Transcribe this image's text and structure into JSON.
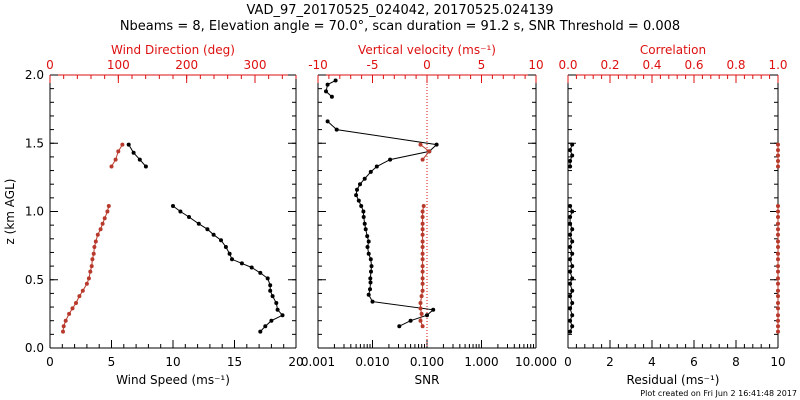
{
  "header": {
    "title_line1": "VAD_97_20170525_024042, 20170525.024139",
    "title_line2": "Nbeams = 8, Elevation angle = 70.0°, scan duration = 91.2 s, SNR Threshold = 0.008"
  },
  "footer": {
    "plot_created": "Plot created on Fri Jun  2 16:41:48 2017"
  },
  "colors": {
    "black": "#000000",
    "red": "#b83a2c",
    "axis_red": "#dd1111"
  },
  "chart_data": [
    {
      "type": "line",
      "panel": "left",
      "ylabel": "z (km AGL)",
      "ylim": [
        0,
        2.0
      ],
      "y_ticks": [
        "0.0",
        "0.5",
        "1.0",
        "1.5",
        "2.0"
      ],
      "xlabel_bottom": "Wind Speed (ms⁻¹)",
      "xlim_bottom": [
        0,
        20
      ],
      "x_ticks_bottom": [
        "0",
        "5",
        "10",
        "15",
        "20"
      ],
      "xlabel_top": "Wind Direction (deg)",
      "xlim_top": [
        0,
        360
      ],
      "x_ticks_top": [
        "0",
        "100",
        "200",
        "300"
      ],
      "series": [
        {
          "axis": "bottom",
          "color": "black",
          "segments": [
            [
              [
                6.4,
                1.49
              ],
              [
                6.8,
                1.43
              ],
              [
                7.3,
                1.38
              ],
              [
                7.8,
                1.33
              ]
            ],
            [
              [
                10.0,
                1.04
              ],
              [
                10.6,
                1.0
              ],
              [
                11.3,
                0.96
              ],
              [
                12.1,
                0.91
              ],
              [
                12.8,
                0.87
              ],
              [
                13.3,
                0.83
              ],
              [
                13.9,
                0.79
              ],
              [
                14.3,
                0.74
              ],
              [
                14.6,
                0.69
              ],
              [
                14.8,
                0.65
              ],
              [
                15.6,
                0.62
              ],
              [
                16.4,
                0.59
              ],
              [
                17.1,
                0.55
              ],
              [
                17.7,
                0.51
              ],
              [
                17.9,
                0.46
              ],
              [
                17.9,
                0.42
              ],
              [
                18.1,
                0.38
              ],
              [
                18.4,
                0.33
              ],
              [
                18.5,
                0.28
              ],
              [
                18.9,
                0.24
              ],
              [
                18.0,
                0.2
              ],
              [
                17.5,
                0.16
              ],
              [
                17.1,
                0.12
              ]
            ]
          ]
        },
        {
          "axis": "top",
          "color": "red",
          "segments": [
            [
              [
                106,
                1.49
              ],
              [
                100,
                1.44
              ],
              [
                96,
                1.38
              ],
              [
                90,
                1.33
              ]
            ],
            [
              [
                86,
                1.04
              ],
              [
                84,
                1.0
              ],
              [
                80,
                0.95
              ],
              [
                77,
                0.91
              ],
              [
                74,
                0.87
              ],
              [
                70,
                0.83
              ],
              [
                67,
                0.78
              ],
              [
                65,
                0.74
              ],
              [
                64,
                0.69
              ],
              [
                62,
                0.65
              ],
              [
                61,
                0.6
              ],
              [
                59,
                0.56
              ],
              [
                57,
                0.51
              ],
              [
                54,
                0.47
              ],
              [
                48,
                0.42
              ],
              [
                43,
                0.38
              ],
              [
                38,
                0.33
              ],
              [
                33,
                0.29
              ],
              [
                28,
                0.25
              ],
              [
                23,
                0.2
              ],
              [
                20,
                0.16
              ],
              [
                19,
                0.12
              ]
            ]
          ]
        }
      ]
    },
    {
      "type": "line",
      "panel": "middle",
      "ylim": [
        0,
        2.0
      ],
      "xlabel_bottom": "SNR",
      "xscale_bottom": "log",
      "xlim_bottom": [
        0.001,
        10
      ],
      "x_ticks_bottom": [
        "0.001",
        "0.010",
        "0.100",
        "1.000",
        "10.000"
      ],
      "xlabel_top": "Vertical velocity (ms⁻¹)",
      "xlim_top": [
        -10,
        10
      ],
      "x_ticks_top": [
        "-10",
        "-5",
        "0",
        "5",
        "10"
      ],
      "reference_line": {
        "axis": "top",
        "value": 0,
        "style": "dotted",
        "color": "red"
      },
      "series": [
        {
          "axis": "bottom",
          "color": "black",
          "segments": [
            [
              [
                0.0021,
                1.96
              ],
              [
                0.0015,
                1.93
              ],
              [
                0.0014,
                1.88
              ],
              [
                0.0018,
                1.84
              ]
            ],
            [
              [
                0.0015,
                1.66
              ],
              [
                0.0022,
                1.6
              ],
              [
                0.15,
                1.49
              ],
              [
                0.11,
                1.44
              ],
              [
                0.021,
                1.38
              ],
              [
                0.012,
                1.33
              ],
              [
                0.0093,
                1.29
              ],
              [
                0.0072,
                1.24
              ],
              [
                0.0059,
                1.2
              ],
              [
                0.0052,
                1.16
              ],
              [
                0.005,
                1.12
              ],
              [
                0.0056,
                1.08
              ],
              [
                0.0062,
                1.04
              ],
              [
                0.0068,
                1.0
              ],
              [
                0.0069,
                0.96
              ],
              [
                0.0072,
                0.91
              ],
              [
                0.0075,
                0.87
              ],
              [
                0.008,
                0.82
              ],
              [
                0.0085,
                0.78
              ],
              [
                0.0081,
                0.74
              ],
              [
                0.0085,
                0.69
              ],
              [
                0.0093,
                0.65
              ],
              [
                0.0096,
                0.6
              ],
              [
                0.0094,
                0.56
              ],
              [
                0.0091,
                0.51
              ],
              [
                0.0092,
                0.48
              ],
              [
                0.009,
                0.43
              ],
              [
                0.0085,
                0.39
              ],
              [
                0.01,
                0.34
              ],
              [
                0.13,
                0.28
              ],
              [
                0.1,
                0.24
              ],
              [
                0.05,
                0.2
              ],
              [
                0.031,
                0.16
              ]
            ]
          ]
        },
        {
          "axis": "top",
          "color": "red",
          "segments": [
            [
              [
                -0.6,
                1.49
              ],
              [
                0.2,
                1.44
              ],
              [
                -0.4,
                1.38
              ]
            ],
            [
              [
                -0.3,
                1.04
              ],
              [
                -0.4,
                1.0
              ],
              [
                -0.4,
                0.96
              ],
              [
                -0.4,
                0.91
              ],
              [
                -0.4,
                0.87
              ],
              [
                -0.4,
                0.83
              ],
              [
                -0.4,
                0.78
              ],
              [
                -0.4,
                0.74
              ],
              [
                -0.4,
                0.69
              ],
              [
                -0.4,
                0.65
              ],
              [
                -0.4,
                0.6
              ],
              [
                -0.4,
                0.56
              ],
              [
                -0.4,
                0.51
              ],
              [
                -0.4,
                0.47
              ],
              [
                -0.4,
                0.42
              ],
              [
                -0.5,
                0.38
              ],
              [
                -0.6,
                0.33
              ],
              [
                -0.6,
                0.29
              ],
              [
                -0.5,
                0.25
              ],
              [
                -0.6,
                0.2
              ],
              [
                -0.4,
                0.16
              ]
            ]
          ]
        }
      ]
    },
    {
      "type": "line",
      "panel": "right",
      "ylim": [
        0,
        2.0
      ],
      "xlabel_bottom": "Residual (ms⁻¹)",
      "xlim_bottom": [
        0,
        10
      ],
      "x_ticks_bottom": [
        "0",
        "2",
        "4",
        "6",
        "8",
        "10"
      ],
      "xlabel_top": "Correlation",
      "xlim_top": [
        0,
        1
      ],
      "x_ticks_top": [
        "0.0",
        "0.2",
        "0.4",
        "0.6",
        "0.8",
        "1.0"
      ],
      "series": [
        {
          "axis": "bottom",
          "color": "black",
          "segments": [
            [
              [
                0.2,
                1.49
              ],
              [
                0.1,
                1.45
              ],
              [
                0.2,
                1.41
              ],
              [
                0.1,
                1.37
              ],
              [
                0.1,
                1.33
              ]
            ],
            [
              [
                0.1,
                1.04
              ],
              [
                0.2,
                1.0
              ],
              [
                0.1,
                0.96
              ],
              [
                0.1,
                0.91
              ],
              [
                0.2,
                0.87
              ],
              [
                0.1,
                0.83
              ],
              [
                0.2,
                0.78
              ],
              [
                0.1,
                0.74
              ],
              [
                0.2,
                0.69
              ],
              [
                0.1,
                0.65
              ],
              [
                0.2,
                0.6
              ],
              [
                0.1,
                0.56
              ],
              [
                0.2,
                0.51
              ],
              [
                0.1,
                0.47
              ],
              [
                0.2,
                0.42
              ],
              [
                0.1,
                0.38
              ],
              [
                0.2,
                0.33
              ],
              [
                0.1,
                0.29
              ],
              [
                0.2,
                0.24
              ],
              [
                0.1,
                0.2
              ],
              [
                0.2,
                0.16
              ],
              [
                0.1,
                0.12
              ]
            ]
          ]
        },
        {
          "axis": "top",
          "color": "red",
          "segments": [
            [
              [
                1.0,
                1.49
              ],
              [
                1.0,
                1.45
              ],
              [
                1.0,
                1.41
              ],
              [
                1.0,
                1.37
              ],
              [
                1.0,
                1.33
              ]
            ],
            [
              [
                1.0,
                1.04
              ],
              [
                1.0,
                1.0
              ],
              [
                1.0,
                0.96
              ],
              [
                1.0,
                0.91
              ],
              [
                1.0,
                0.87
              ],
              [
                1.0,
                0.83
              ],
              [
                1.0,
                0.78
              ],
              [
                1.0,
                0.74
              ],
              [
                1.0,
                0.69
              ],
              [
                1.0,
                0.65
              ],
              [
                1.0,
                0.6
              ],
              [
                1.0,
                0.56
              ],
              [
                1.0,
                0.51
              ],
              [
                1.0,
                0.47
              ],
              [
                1.0,
                0.42
              ],
              [
                1.0,
                0.38
              ],
              [
                1.0,
                0.33
              ],
              [
                1.0,
                0.29
              ],
              [
                1.0,
                0.24
              ],
              [
                1.0,
                0.2
              ],
              [
                1.0,
                0.16
              ],
              [
                1.0,
                0.12
              ]
            ]
          ]
        }
      ]
    }
  ]
}
